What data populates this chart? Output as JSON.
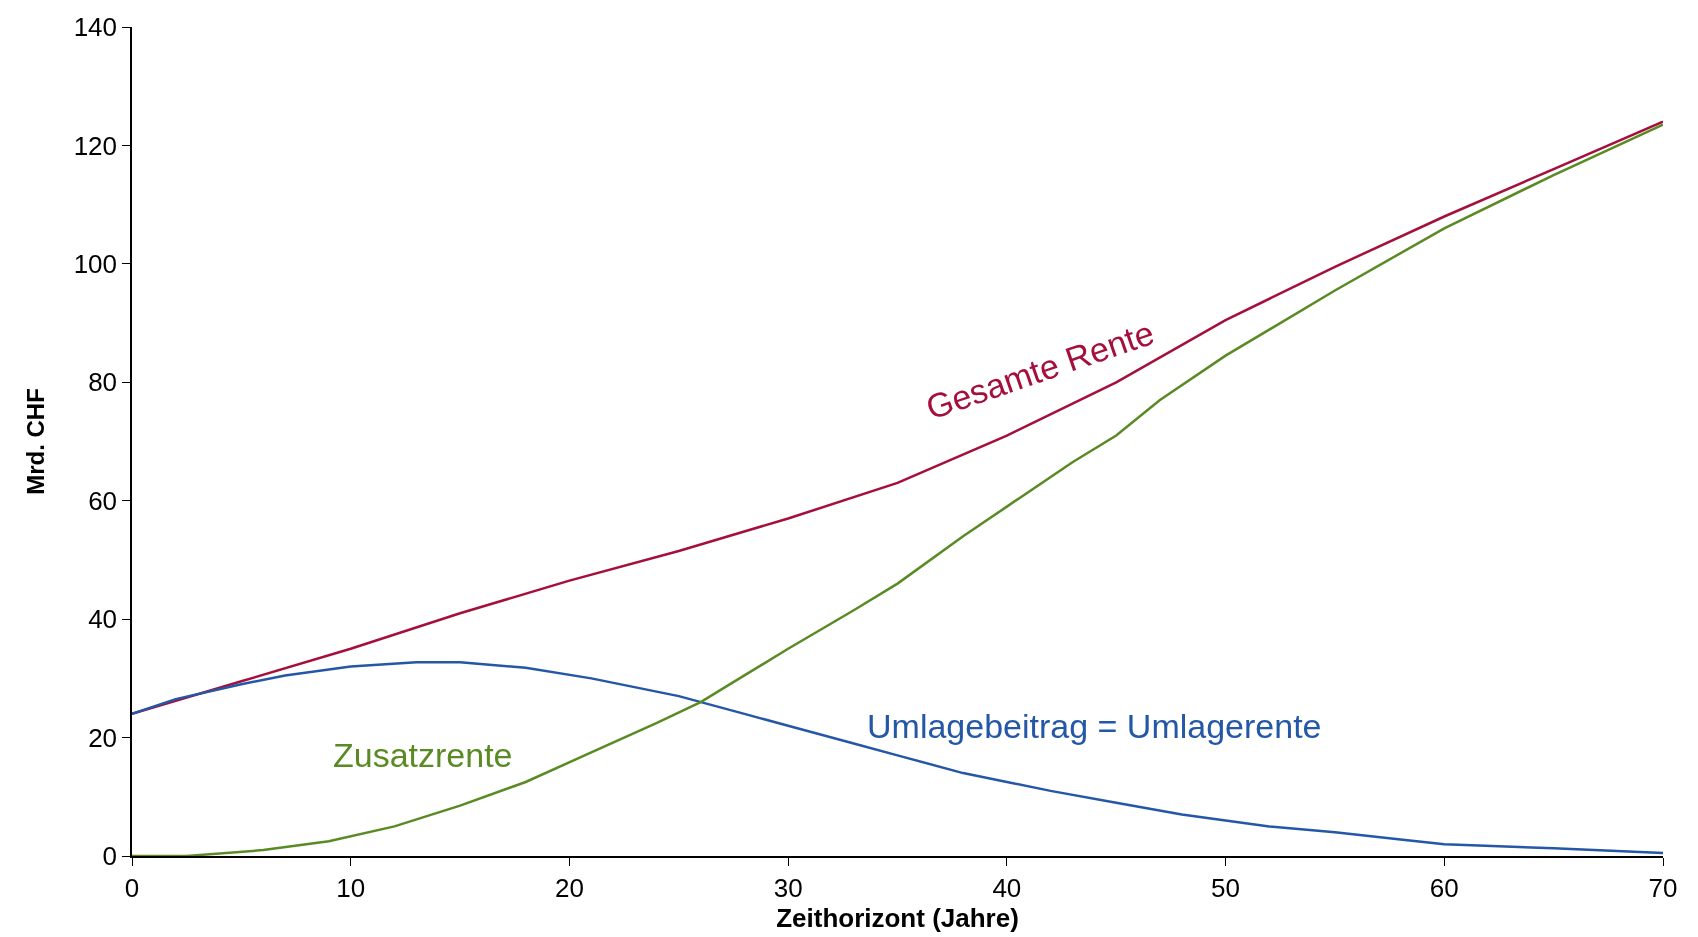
{
  "chart_data": {
    "type": "line",
    "xlabel": "Zeithorizont (Jahre)",
    "ylabel": "Mrd. CHF",
    "xlim": [
      0,
      70
    ],
    "xticks": [
      0,
      10,
      20,
      30,
      40,
      50,
      60,
      70
    ],
    "ylim": [
      0,
      140
    ],
    "yticks": [
      0,
      20,
      40,
      60,
      80,
      100,
      120,
      140
    ],
    "grid": false,
    "legend": false,
    "marker": "none",
    "line_style": "solid",
    "series": [
      {
        "name": "Gesamte Rente",
        "color": "#a50f3c",
        "x": [
          0,
          5,
          10,
          15,
          20,
          25,
          30,
          35,
          40,
          45,
          50,
          55,
          60,
          65,
          70
        ],
        "values": [
          24,
          29.5,
          35,
          41,
          46.5,
          51.5,
          57,
          63,
          71,
          80,
          90.5,
          99.5,
          108,
          116,
          124
        ]
      },
      {
        "name": "Umlagebeitrag = Umlagerente",
        "color": "#2457a6",
        "x": [
          0,
          2,
          5,
          7,
          10,
          13,
          15,
          18,
          21,
          25,
          28,
          30,
          33,
          35,
          38,
          40,
          42,
          45,
          48,
          50,
          52,
          55,
          58,
          60,
          65,
          70
        ],
        "values": [
          24,
          26.5,
          29,
          30.5,
          32,
          32.7,
          32.7,
          31.8,
          30,
          27,
          24,
          22,
          19,
          17,
          14,
          12.5,
          11,
          9,
          7,
          6,
          5,
          4,
          2.8,
          2,
          1.3,
          0.5
        ]
      },
      {
        "name": "Zusatzrente",
        "color": "#5a8a23",
        "x": [
          0,
          2.5,
          6,
          9,
          12,
          15,
          18,
          21,
          24,
          26,
          28,
          30,
          33,
          35,
          38,
          40,
          43,
          45,
          47,
          50,
          55,
          60,
          65,
          70
        ],
        "values": [
          0,
          0,
          1,
          2.5,
          5,
          8.5,
          12.5,
          17.5,
          22.5,
          26,
          30.5,
          35,
          41.5,
          46,
          54,
          59,
          66.5,
          71,
          77,
          84.5,
          95.5,
          106,
          115,
          123.5
        ]
      }
    ]
  }
}
